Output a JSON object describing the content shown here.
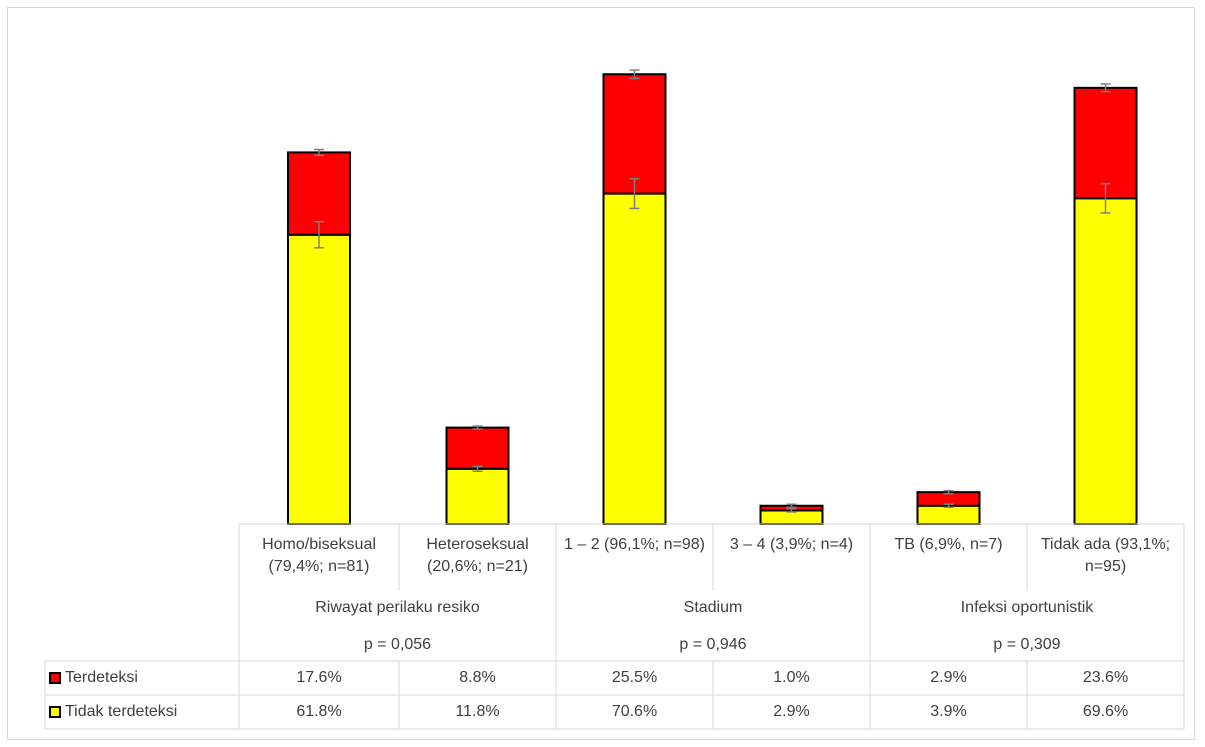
{
  "chart_data": {
    "type": "bar",
    "stacked": true,
    "categories": [
      "Homo/biseksual (79,4%; n=81)",
      "Heteroseksual (20,6%; n=21)",
      "1 – 2 (96,1%; n=98)",
      "3 – 4 (3,9%; n=4)",
      "TB (6,9%, n=7)",
      "Tidak ada (93,1%; n=95)"
    ],
    "groups": [
      {
        "label": "Riwayat perilaku resiko",
        "p": "p = 0,056"
      },
      {
        "label": "Stadium",
        "p": "p = 0,946"
      },
      {
        "label": "Infeksi oportunistik",
        "p": "p = 0,309"
      }
    ],
    "series": [
      {
        "name": "Tidak terdeteksi",
        "color": "#ffff00",
        "values": [
          61.8,
          11.8,
          70.6,
          2.9,
          3.9,
          69.6
        ],
        "labels": [
          "61.8%",
          "11.8%",
          "70.6%",
          "2.9%",
          "3.9%",
          "69.6%"
        ]
      },
      {
        "name": "Terdeteksi",
        "color": "#ff0000",
        "values": [
          17.6,
          8.8,
          25.5,
          1.0,
          2.9,
          23.6
        ],
        "labels": [
          "17.6%",
          "8.8%",
          "25.5%",
          "1.0%",
          "2.9%",
          "23.6%"
        ]
      }
    ],
    "error_bars": true,
    "ylim": [
      0,
      100
    ],
    "grid": false,
    "legend": "data-table"
  }
}
